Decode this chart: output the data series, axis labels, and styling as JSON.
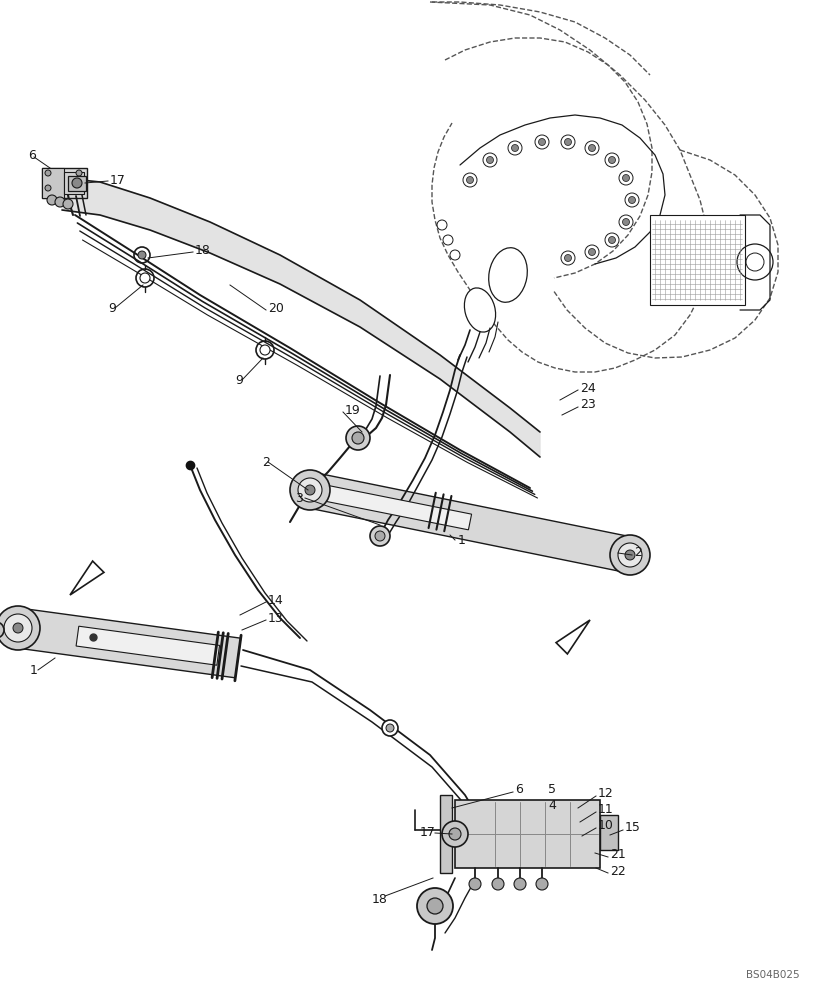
{
  "background_color": "#ffffff",
  "watermark": "BS04B025",
  "line_color": "#1a1a1a",
  "dash_color": "#333333",
  "label_color": "#1a1a1a",
  "label_fontsize": 9,
  "figsize": [
    8.2,
    10.0
  ],
  "dpi": 100
}
